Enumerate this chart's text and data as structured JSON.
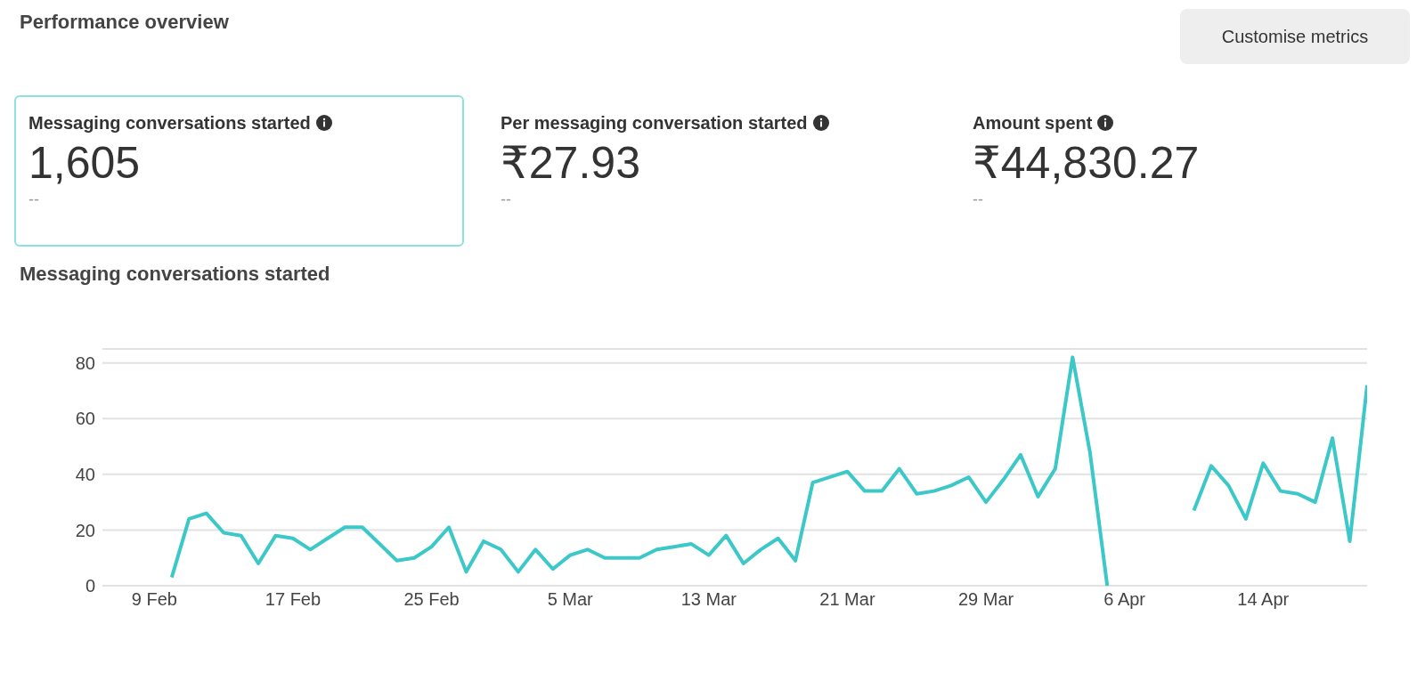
{
  "chart_data": [
    {
      "type": "other",
      "title": "Performance overview",
      "categories": [
        "Messaging conversations started",
        "Per messaging conversation started",
        "Amount spent"
      ],
      "value_labels": [
        "1,605",
        "₹27.93",
        "₹44,830.27"
      ],
      "annotations": [
        "Customise metrics",
        "--",
        "--",
        "--"
      ]
    },
    {
      "type": "line",
      "title": "Messaging conversations started",
      "x": [
        "--02-10",
        "--02-11",
        "--02-12",
        "--02-13",
        "--02-14",
        "--02-15",
        "--02-16",
        "--02-17",
        "--02-18",
        "--02-19",
        "--02-20",
        "--02-21",
        "--02-22",
        "--02-23",
        "--02-24",
        "--02-25",
        "--02-26",
        "--02-27",
        "--02-28",
        "--03-01",
        "--03-02",
        "--03-03",
        "--03-04",
        "--03-05",
        "--03-06",
        "--03-07",
        "--03-08",
        "--03-09",
        "--03-10",
        "--03-11",
        "--03-12",
        "--03-13",
        "--03-14",
        "--03-15",
        "--03-16",
        "--03-17",
        "--03-18",
        "--03-19",
        "--03-20",
        "--03-21",
        "--03-22",
        "--03-23",
        "--03-24",
        "--03-25",
        "--03-26",
        "--03-27",
        "--03-28",
        "--03-29",
        "--03-30",
        "--03-31",
        "--04-01",
        "--04-02",
        "--04-03",
        "--04-04",
        "--04-05",
        "--04-06",
        "--04-07",
        "--04-08",
        "--04-09",
        "--04-10",
        "--04-11",
        "--04-12",
        "--04-13",
        "--04-14",
        "--04-15",
        "--04-16",
        "--04-17",
        "--04-18",
        "--04-19",
        "--04-20"
      ],
      "series": [
        {
          "color": "#3cc8c8",
          "values": [
            3,
            24,
            26,
            19,
            18,
            8,
            18,
            17,
            13,
            17,
            21,
            21,
            15,
            9,
            10,
            14,
            21,
            5,
            16,
            13,
            5,
            13,
            6,
            11,
            13,
            10,
            10,
            10,
            13,
            14,
            15,
            11,
            18,
            8,
            13,
            17,
            9,
            37,
            39,
            41,
            34,
            34,
            42,
            33,
            34,
            36,
            39,
            30,
            38,
            47,
            32,
            42,
            82,
            48,
            0,
            null,
            null,
            null,
            null,
            27,
            43,
            36,
            24,
            44,
            34,
            33,
            30,
            53,
            16,
            72
          ]
        }
      ],
      "xlim": [
        "--02-06",
        "--04-20"
      ],
      "xticks": [
        {
          "value": "--02-09",
          "label": "9 Feb"
        },
        {
          "value": "--02-17",
          "label": "17 Feb"
        },
        {
          "value": "--02-25",
          "label": "25 Feb"
        },
        {
          "value": "--03-05",
          "label": "5 Mar"
        },
        {
          "value": "--03-13",
          "label": "13 Mar"
        },
        {
          "value": "--03-21",
          "label": "21 Mar"
        },
        {
          "value": "--03-29",
          "label": "29 Mar"
        },
        {
          "value": "--04-06",
          "label": "6 Apr"
        },
        {
          "value": "--04-14",
          "label": "14 Apr"
        }
      ],
      "ylim": [
        0,
        85
      ],
      "yticks": [
        0,
        20,
        40,
        60,
        80
      ],
      "grid": "y",
      "legend": false,
      "marker": "none",
      "line_style": "solid"
    }
  ]
}
